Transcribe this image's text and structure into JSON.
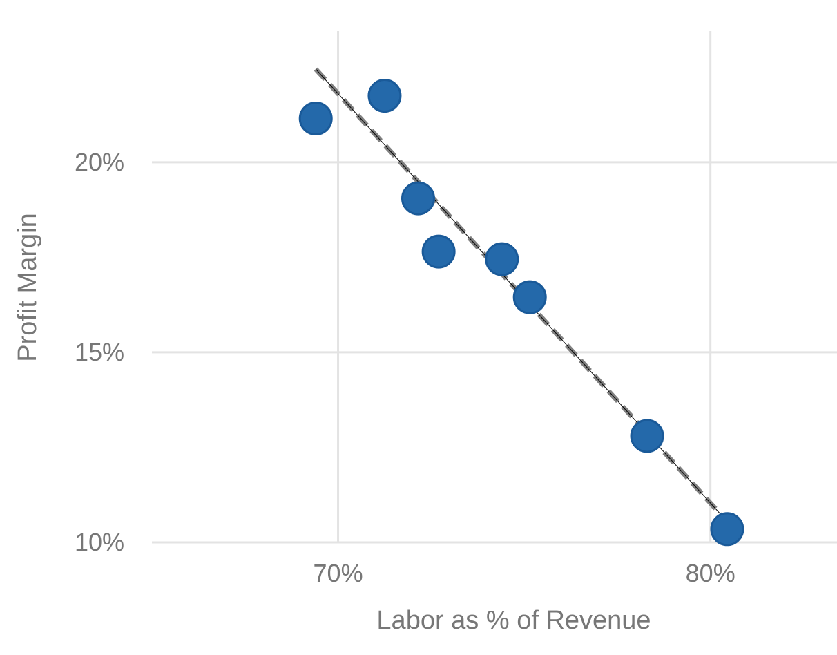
{
  "chart_data": {
    "type": "scatter",
    "title": "",
    "xlabel": "Labor as % of Revenue",
    "ylabel": "Profit Margin",
    "xlim": [
      0.65,
      0.834
    ],
    "ylim": [
      0.1,
      0.2345
    ],
    "x_ticks": [
      0.7,
      0.8
    ],
    "x_tick_labels": [
      "70%",
      "80%"
    ],
    "y_ticks": [
      0.1,
      0.15,
      0.2
    ],
    "y_tick_labels": [
      "10%",
      "15%",
      "20%"
    ],
    "grid": true,
    "legend": "none",
    "series": [
      {
        "color": "#2469aa",
        "points": [
          {
            "x": 0.694,
            "y": 0.2115
          },
          {
            "x": 0.7125,
            "y": 0.2175
          },
          {
            "x": 0.7215,
            "y": 0.1905
          },
          {
            "x": 0.727,
            "y": 0.1765
          },
          {
            "x": 0.744,
            "y": 0.1745
          },
          {
            "x": 0.7515,
            "y": 0.1645
          },
          {
            "x": 0.783,
            "y": 0.128
          },
          {
            "x": 0.8045,
            "y": 0.1035
          }
        ]
      }
    ],
    "trendlines": [
      {
        "style": "dashed",
        "color": "#808080",
        "x": [
          0.694,
          0.8045
        ],
        "y": [
          0.2245,
          0.1055
        ]
      },
      {
        "style": "solid-thin",
        "color": "#000000",
        "x": [
          0.694,
          0.8045
        ],
        "y": [
          0.2245,
          0.1055
        ]
      }
    ]
  }
}
